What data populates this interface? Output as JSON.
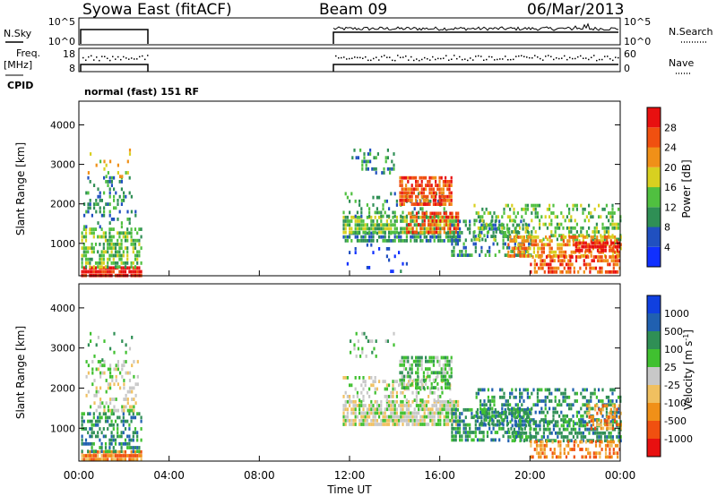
{
  "header": {
    "station": "Syowa East (fitACF)",
    "beam": "Beam 09",
    "date": "06/Mar/2013"
  },
  "top_panels": {
    "nsky_label": "N.Sky",
    "nsky_ticks": [
      "10^5",
      "10^0"
    ],
    "nsearch_label": "N.Search",
    "nsearch_ticks": [
      "10^5",
      "10^0"
    ],
    "freq_label_1": "Freq.",
    "freq_label_2": "[MHz]",
    "freq_ticks": [
      "18",
      "8"
    ],
    "nave_label": "Nave",
    "nave_ticks": [
      "60",
      "0"
    ],
    "cpid_label": "CPID",
    "cpid_text": "normal (fast) 151 RF"
  },
  "x_axis": {
    "ticks": [
      "00:00",
      "04:00",
      "08:00",
      "12:00",
      "16:00",
      "20:00",
      "00:00"
    ],
    "label": "Time UT"
  },
  "colors": {
    "power": [
      "#1030ff",
      "#2050c0",
      "#2f8f55",
      "#50c040",
      "#d8d020",
      "#f09018",
      "#f05010",
      "#e81010"
    ],
    "velocity": [
      "#e81010",
      "#f05010",
      "#f09018",
      "#f0c060",
      "#c8c8c8",
      "#40c030",
      "#2f8f55",
      "#2060b0",
      "#1040e0"
    ]
  },
  "chart_data": [
    {
      "type": "heatmap",
      "title": "Power",
      "ylabel": "Slant Range [km]",
      "colorbar_label": "Power [dB]",
      "colorbar_ticks": [
        "4",
        "8",
        "12",
        "16",
        "20",
        "24",
        "28"
      ],
      "xlim": [
        0,
        24
      ],
      "ylim": [
        180,
        4600
      ],
      "y_ticks": [
        "1000",
        "2000",
        "3000",
        "4000"
      ],
      "data_gap_hours": [
        2.8,
        11.7
      ],
      "regions": [
        {
          "t": [
            0.1,
            2.8
          ],
          "r": [
            200,
            420
          ],
          "level": 7,
          "density": 0.85
        },
        {
          "t": [
            0.1,
            2.8
          ],
          "r": [
            420,
            1400
          ],
          "level": 3,
          "density": 0.55
        },
        {
          "t": [
            0.2,
            2.5
          ],
          "r": [
            1400,
            2700
          ],
          "level": 2,
          "density": 0.25
        },
        {
          "t": [
            0.3,
            2.5
          ],
          "r": [
            2700,
            3400
          ],
          "level": 4,
          "density": 0.1
        },
        {
          "t": [
            11.7,
            16.8
          ],
          "r": [
            1100,
            1300
          ],
          "level": 2,
          "density": 0.7
        },
        {
          "t": [
            11.7,
            16.8
          ],
          "r": [
            1300,
            1700
          ],
          "level": 3,
          "density": 0.75
        },
        {
          "t": [
            11.7,
            16.5
          ],
          "r": [
            1700,
            2300
          ],
          "level": 2,
          "density": 0.25
        },
        {
          "t": [
            12.0,
            14.0
          ],
          "r": [
            2800,
            3400
          ],
          "level": 2,
          "density": 0.2
        },
        {
          "t": [
            14.2,
            16.5
          ],
          "r": [
            2000,
            2700
          ],
          "level": 6,
          "density": 0.75
        },
        {
          "t": [
            14.5,
            16.8
          ],
          "r": [
            1300,
            1800
          ],
          "level": 6,
          "density": 0.5
        },
        {
          "t": [
            16.5,
            20.0
          ],
          "r": [
            700,
            1600
          ],
          "level": 2,
          "density": 0.35
        },
        {
          "t": [
            17.5,
            24.0
          ],
          "r": [
            1100,
            2000
          ],
          "level": 3,
          "density": 0.35
        },
        {
          "t": [
            19.0,
            24.0
          ],
          "r": [
            700,
            1200
          ],
          "level": 5,
          "density": 0.55
        },
        {
          "t": [
            20.0,
            24.0
          ],
          "r": [
            250,
            700
          ],
          "level": 6,
          "density": 0.55
        },
        {
          "t": [
            22.0,
            24.0
          ],
          "r": [
            850,
            1050
          ],
          "level": 7,
          "density": 0.8
        },
        {
          "t": [
            11.7,
            14.5
          ],
          "r": [
            300,
            1000
          ],
          "level": 1,
          "density": 0.06
        }
      ]
    },
    {
      "type": "heatmap",
      "title": "Velocity",
      "ylabel": "Slant Range [km]",
      "colorbar_label": "Velocity [m s^-1]",
      "colorbar_ticks": [
        "-1000",
        "-500",
        "-100",
        "-25",
        "25",
        "100",
        "500",
        "1000"
      ],
      "xlim": [
        0,
        24
      ],
      "ylim": [
        180,
        4600
      ],
      "y_ticks": [
        "1000",
        "2000",
        "3000",
        "4000"
      ],
      "regions": [
        {
          "t": [
            0.1,
            2.8
          ],
          "r": [
            200,
            450
          ],
          "level": 2,
          "density": 0.8
        },
        {
          "t": [
            0.1,
            2.8
          ],
          "r": [
            450,
            1400
          ],
          "level": 6,
          "density": 0.45
        },
        {
          "t": [
            0.3,
            2.6
          ],
          "r": [
            1400,
            2700
          ],
          "level": 4,
          "density": 0.35
        },
        {
          "t": [
            0.3,
            2.5
          ],
          "r": [
            2700,
            3400
          ],
          "level": 5,
          "density": 0.1
        },
        {
          "t": [
            11.7,
            16.8
          ],
          "r": [
            1100,
            1700
          ],
          "level": 4,
          "density": 0.8
        },
        {
          "t": [
            11.7,
            16.5
          ],
          "r": [
            1700,
            2300
          ],
          "level": 4,
          "density": 0.3
        },
        {
          "t": [
            12.0,
            14.0
          ],
          "r": [
            2800,
            3400
          ],
          "level": 5,
          "density": 0.2
        },
        {
          "t": [
            14.2,
            16.5
          ],
          "r": [
            2000,
            2800
          ],
          "level": 5,
          "density": 0.6
        },
        {
          "t": [
            16.5,
            20.0
          ],
          "r": [
            700,
            1500
          ],
          "level": 6,
          "density": 0.55
        },
        {
          "t": [
            17.5,
            24.0
          ],
          "r": [
            1100,
            2000
          ],
          "level": 6,
          "density": 0.4
        },
        {
          "t": [
            19.0,
            24.0
          ],
          "r": [
            700,
            1200
          ],
          "level": 6,
          "density": 0.55
        },
        {
          "t": [
            20.0,
            24.0
          ],
          "r": [
            250,
            700
          ],
          "level": 2,
          "density": 0.5
        },
        {
          "t": [
            22.5,
            24.0
          ],
          "r": [
            1000,
            1600
          ],
          "level": 2,
          "density": 0.55
        }
      ]
    }
  ]
}
